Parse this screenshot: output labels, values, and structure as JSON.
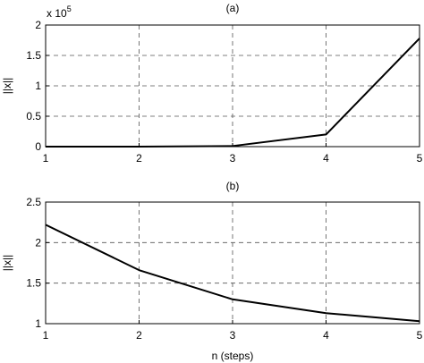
{
  "chart_data": [
    {
      "type": "line",
      "title": "(a)",
      "xlabel": "",
      "ylabel": "||x||",
      "y_multiplier": "x 10",
      "y_multiplier_exponent": "5",
      "x": [
        1,
        2,
        3,
        4,
        5
      ],
      "xlim": [
        1,
        5
      ],
      "ylim": [
        0,
        2
      ],
      "xticks": [
        "1",
        "2",
        "3",
        "4",
        "5"
      ],
      "yticks": [
        "0",
        "0.5",
        "1",
        "1.5",
        "2"
      ],
      "ytick_values": [
        0,
        0.5,
        1,
        1.5,
        2
      ],
      "grid": true,
      "series": [
        {
          "values": [
            0.0,
            0.0,
            0.01,
            0.2,
            1.78
          ]
        }
      ]
    },
    {
      "type": "line",
      "title": "(b)",
      "xlabel": "n (steps)",
      "ylabel": "||x||",
      "x": [
        1,
        2,
        3,
        4,
        5
      ],
      "xlim": [
        1,
        5
      ],
      "ylim": [
        1,
        2.5
      ],
      "xticks": [
        "1",
        "2",
        "3",
        "4",
        "5"
      ],
      "yticks": [
        "1",
        "1.5",
        "2",
        "2.5"
      ],
      "ytick_values": [
        1,
        1.5,
        2,
        2.5
      ],
      "grid": true,
      "series": [
        {
          "values": [
            2.22,
            1.66,
            1.3,
            1.13,
            1.03
          ]
        }
      ]
    }
  ]
}
